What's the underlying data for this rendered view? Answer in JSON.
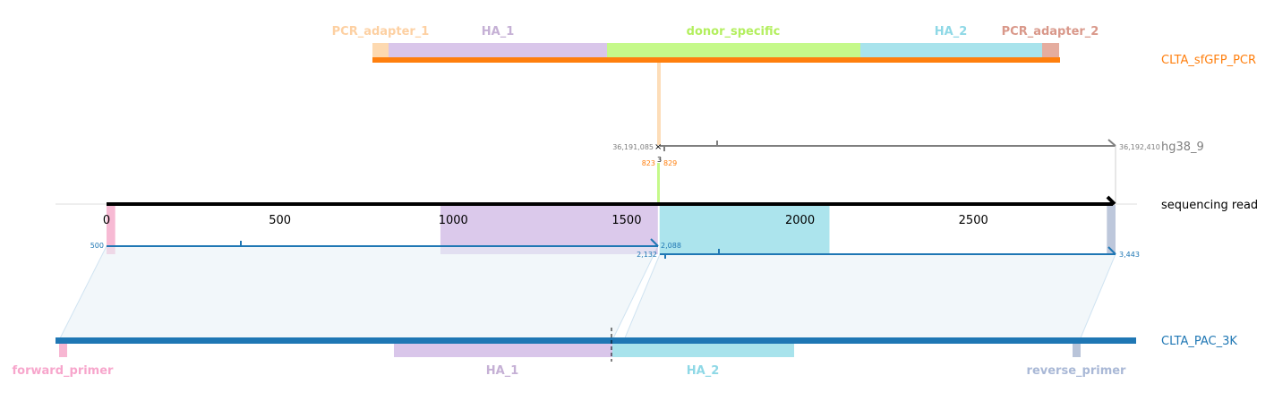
{
  "chart_data": {
    "type": "alignment",
    "reference_tracks": {
      "top": {
        "name": "CLTA_sfGFP_PCR",
        "color": "#ff7f0e",
        "features": [
          {
            "name": "PCR_adapter_1",
            "color": "#fdd9b0",
            "label_color": "#fdd0a2"
          },
          {
            "name": "HA_1",
            "color": "#d9c6ea",
            "label_color": "#c5b0d5"
          },
          {
            "name": "donor_specific",
            "color": "#c5f98a",
            "label_color": "#b3ef5e"
          },
          {
            "name": "HA_2",
            "color": "#a8e3ec",
            "label_color": "#8ed8e6"
          },
          {
            "name": "PCR_adapter_2",
            "color": "#e5ad9f",
            "label_color": "#d9988a"
          }
        ]
      },
      "genome": {
        "name": "hg38_9",
        "color": "#7f7f7f",
        "labels": {
          "start": "36,191,085",
          "end": "36,192,410",
          "left_query": "823",
          "right_query": "829",
          "gap": "3"
        }
      },
      "read": {
        "name": "sequencing read",
        "color": "#000000",
        "axis_ticks": [
          0,
          500,
          1000,
          1500,
          2000,
          2500
        ],
        "xlim": [
          0,
          2910
        ],
        "features": [
          {
            "name": "forward_primer",
            "start": 0,
            "end": 25,
            "color": "#f7b6d2"
          },
          {
            "name": "HA_1",
            "start": 963,
            "end": 1590,
            "color": "#d9c6ea"
          },
          {
            "name": "HA_2",
            "start": 1595,
            "end": 2085,
            "color": "#a8e3ec"
          },
          {
            "name": "reverse_primer",
            "start": 2885,
            "end": 2910,
            "color": "#b9c4d9"
          }
        ]
      },
      "bottom": {
        "name": "CLTA_PAC_3K",
        "color": "#1f77b4",
        "features": [
          {
            "name": "forward_primer",
            "color": "#f7b6d2",
            "label_color": "#f7a6cc"
          },
          {
            "name": "HA_1",
            "color": "#d9c6ea",
            "label_color": "#c5b0d5"
          },
          {
            "name": "HA_2",
            "color": "#a8e3ec",
            "label_color": "#8ed8e6"
          },
          {
            "name": "reverse_primer",
            "color": "#b9c4d9",
            "label_color": "#a9b8d6"
          }
        ]
      }
    },
    "alignments": [
      {
        "read_range": [
          0,
          1590
        ],
        "ref_labels": {
          "start": "500",
          "end": "2,132"
        },
        "color": "#1f77b4"
      },
      {
        "read_range": [
          1595,
          2910
        ],
        "ref_labels": {
          "start": "2,088",
          "end": "3,443"
        },
        "color": "#1f77b4"
      }
    ]
  }
}
